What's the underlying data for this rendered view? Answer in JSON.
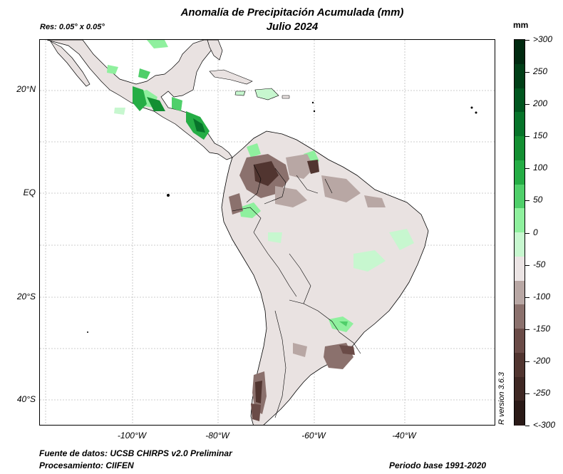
{
  "title": {
    "line1": "Anomalía de Precipitación Acumulada (mm)",
    "line2": "Julio 2024"
  },
  "resolution": "Res: 0.05° x 0.05°",
  "unit": "mm",
  "axes": {
    "lon_ticks": [
      "-100°W",
      "-80°W",
      "-60°W",
      "-40°W"
    ],
    "lat_ticks": [
      "20°N",
      "EQ",
      "20°S",
      "40°S"
    ]
  },
  "colorbar": {
    "labels": [
      ">300",
      "250",
      "200",
      "150",
      "100",
      "50",
      "0",
      "-50",
      "-100",
      "-150",
      "-200",
      "-250",
      "<-300"
    ],
    "colors": [
      "#002a10",
      "#003f17",
      "#00561f",
      "#07742a",
      "#138f32",
      "#25ad45",
      "#4fcf6a",
      "#8ff09e",
      "#c7f7cf",
      "#ebe4e4",
      "#b8a7a4",
      "#8b716d",
      "#6a4b47",
      "#513530",
      "#3f2824",
      "#2a1a17"
    ]
  },
  "footer": {
    "source": "Fuente de datos: UCSB CHIRPS v2.0 Preliminar",
    "processing": "Procesamiento: CIIFEN",
    "base_period": "Periodo base 1991-2020",
    "r_version": "R version 3.6.3"
  },
  "colors": {
    "land_neutral": "#e9e2e1",
    "wet_light": "#c7f7cf",
    "wet_mid": "#8ff09e",
    "wet_strong": "#25ad45",
    "dry_light": "#b8a7a4",
    "dry_mid": "#8b716d",
    "dry_strong": "#513530"
  }
}
